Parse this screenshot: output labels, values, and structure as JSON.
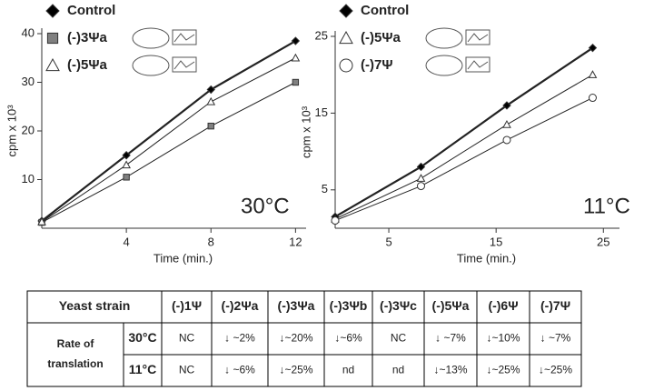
{
  "chart_data": [
    {
      "type": "scatter",
      "x_label": "Time (min.)",
      "y_label": "cpm x 10³",
      "annotation": "30°C",
      "x": [
        0,
        4,
        8,
        12
      ],
      "xlim": [
        0,
        12.5
      ],
      "xticks": [
        4,
        8,
        12
      ],
      "ylim": [
        0,
        40
      ],
      "yticks": [
        10,
        20,
        30,
        40
      ],
      "series": [
        {
          "name": "Control",
          "color": "#000000",
          "marker": "diamond",
          "values": [
            1.5,
            15,
            28.5,
            38.5
          ]
        },
        {
          "name": "(-)3Ψa",
          "color": "#808080",
          "marker": "square",
          "values": [
            1.2,
            10.5,
            21,
            30
          ]
        },
        {
          "name": "(-)5Ψa",
          "color": "#ffffff",
          "marker": "triangle",
          "values": [
            1.3,
            13,
            26,
            35
          ]
        }
      ]
    },
    {
      "type": "scatter",
      "x_label": "Time (min.)",
      "y_label": "cpm x 10³",
      "annotation": "11°C",
      "x": [
        0,
        8,
        16,
        24
      ],
      "xlim": [
        0,
        26.5
      ],
      "xticks": [
        5,
        15,
        25
      ],
      "ylim": [
        0,
        25
      ],
      "yticks": [
        5,
        15,
        25
      ],
      "series": [
        {
          "name": "Control",
          "color": "#000000",
          "marker": "diamond",
          "values": [
            1.5,
            8,
            16,
            23.5
          ]
        },
        {
          "name": "(-)5Ψa",
          "color": "#ffffff",
          "marker": "triangle",
          "values": [
            1.2,
            6.5,
            13.5,
            20
          ]
        },
        {
          "name": "(-)7Ψ",
          "color": "#ffffff",
          "marker": "circle",
          "values": [
            1,
            5.5,
            11.5,
            17
          ]
        }
      ]
    }
  ],
  "table": {
    "header": [
      "Yeast strain",
      "(-)1Ψ",
      "(-)2Ψa",
      "(-)3Ψa",
      "(-)3Ψb",
      "(-)3Ψc",
      "(-)5Ψa",
      "(-)6Ψ",
      "(-)7Ψ"
    ],
    "row_group": "Rate of translation",
    "rows": [
      [
        "30°C",
        "NC",
        "↓ ~2%",
        "↓~20%",
        "↓~6%",
        "NC",
        "↓ ~7%",
        "↓~10%",
        "↓ ~7%"
      ],
      [
        "11°C",
        "NC",
        "↓ ~6%",
        "↓~25%",
        "nd",
        "nd",
        "↓~13%",
        "↓~25%",
        "↓~25%"
      ]
    ]
  }
}
